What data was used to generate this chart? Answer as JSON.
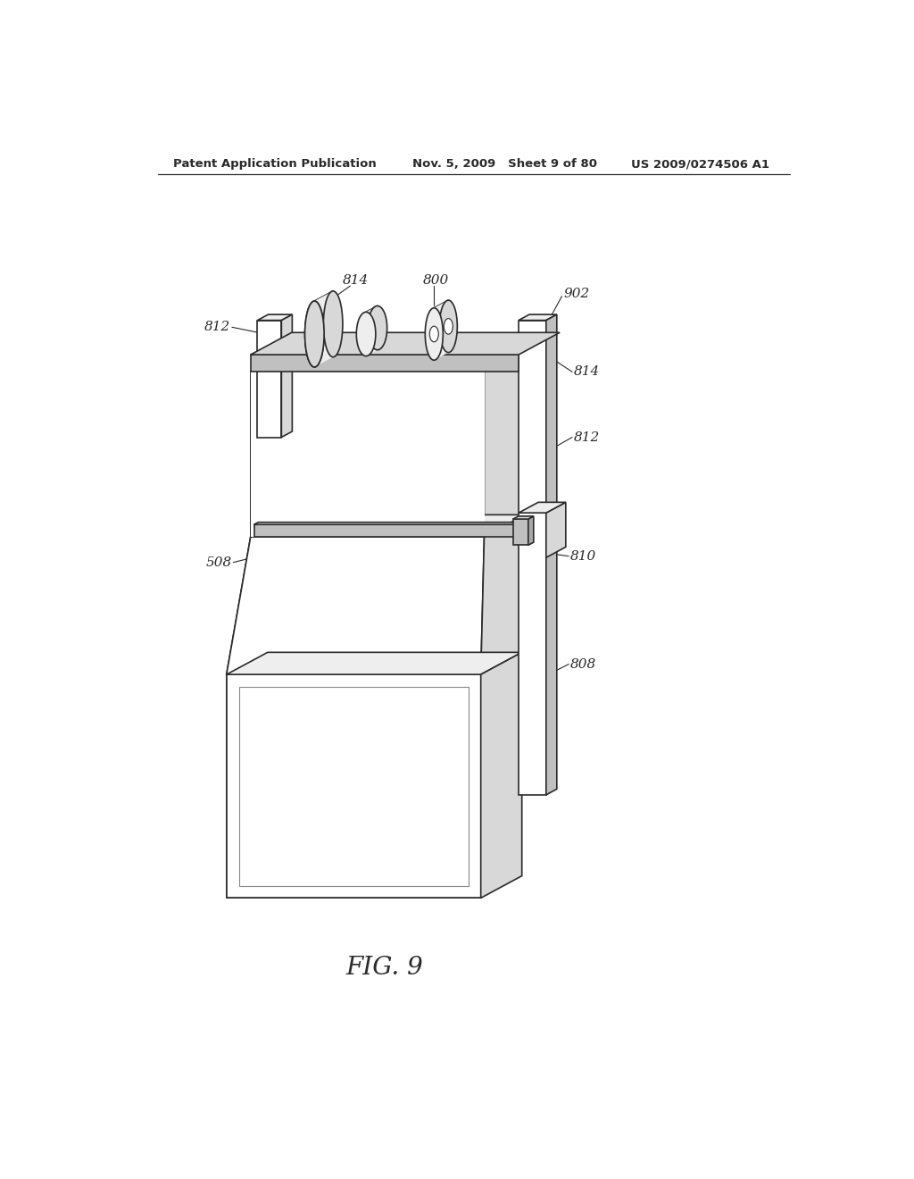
{
  "title_left": "Patent Application Publication",
  "title_mid": "Nov. 5, 2009   Sheet 9 of 80",
  "title_right": "US 2009/0274506 A1",
  "fig_label": "FIG. 9",
  "bg_color": "#ffffff",
  "line_color": "#2a2a2a",
  "face_white": "#ffffff",
  "face_light": "#eeeeee",
  "face_mid": "#d8d8d8",
  "face_dark": "#c0c0c0",
  "face_darker": "#a8a8a8"
}
